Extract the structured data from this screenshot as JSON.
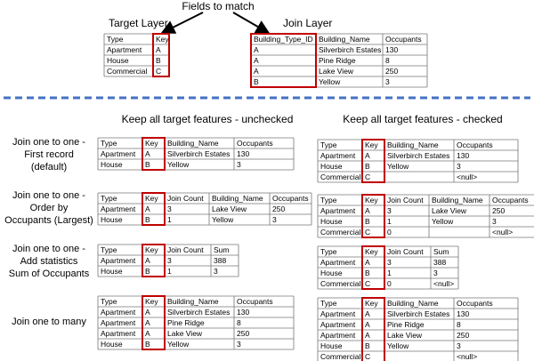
{
  "header": {
    "label": "Fields to match"
  },
  "target_layer": {
    "title": "Target Layer",
    "headers": [
      "Type",
      "Key"
    ],
    "rows": [
      [
        "Apartment",
        "A"
      ],
      [
        "House",
        "B"
      ],
      [
        "Commercial",
        "C"
      ]
    ]
  },
  "join_layer": {
    "title": "Join Layer",
    "headers": [
      "Building_Type_ID",
      "Building_Name",
      "Occupants"
    ],
    "rows": [
      [
        "A",
        "Silverbirch Estates",
        130
      ],
      [
        "A",
        "Pine Ridge",
        8
      ],
      [
        "A",
        "Lake View",
        250
      ],
      [
        "B",
        "Yellow",
        3
      ]
    ]
  },
  "columns": [
    "Keep all target features - unchecked",
    "Keep all target features - checked"
  ],
  "examples": [
    {
      "label": [
        "Join one to one -",
        "First record",
        "(default)"
      ],
      "unchecked": {
        "headers": [
          "Type",
          "Key",
          "Building_Name",
          "Occupants"
        ],
        "rows": [
          [
            "Apartment",
            "A",
            "Silverbirch Estates",
            130
          ],
          [
            "House",
            "B",
            "Yellow",
            3
          ]
        ]
      },
      "checked": {
        "headers": [
          "Type",
          "Key",
          "Building_Name",
          "Occupants"
        ],
        "rows": [
          [
            "Apartment",
            "A",
            "Silverbirch Estates",
            130
          ],
          [
            "House",
            "B",
            "Yellow",
            3
          ],
          [
            "Commercial",
            "C",
            "",
            "<null>"
          ]
        ]
      }
    },
    {
      "label": [
        "Join one to one -",
        "Order by",
        "Occupants (Largest)"
      ],
      "unchecked": {
        "headers": [
          "Type",
          "Key",
          "Join Count",
          "Building_Name",
          "Occupants"
        ],
        "rows": [
          [
            "Apartment",
            "A",
            3,
            "Lake View",
            250
          ],
          [
            "House",
            "B",
            1,
            "Yellow",
            3
          ]
        ]
      },
      "checked": {
        "headers": [
          "Type",
          "Key",
          "Join Count",
          "Building_Name",
          "Occupants"
        ],
        "rows": [
          [
            "Apartment",
            "A",
            3,
            "Lake View",
            250
          ],
          [
            "House",
            "B",
            1,
            "Yellow",
            3
          ],
          [
            "Commercial",
            "C",
            0,
            "",
            "<null>"
          ]
        ]
      }
    },
    {
      "label": [
        "Join one to one -",
        "Add statistics",
        "Sum of Occupants"
      ],
      "unchecked": {
        "headers": [
          "Type",
          "Key",
          "Join Count",
          "Sum"
        ],
        "rows": [
          [
            "Apartment",
            "A",
            3,
            388
          ],
          [
            "House",
            "B",
            1,
            3
          ]
        ]
      },
      "checked": {
        "headers": [
          "Type",
          "Key",
          "Join Count",
          "Sum"
        ],
        "rows": [
          [
            "Apartment",
            "A",
            3,
            388
          ],
          [
            "House",
            "B",
            1,
            3
          ],
          [
            "Commercial",
            "C",
            0,
            "<null>"
          ]
        ]
      }
    },
    {
      "label": [
        "Join one to many"
      ],
      "unchecked": {
        "headers": [
          "Type",
          "Key",
          "Building_Name",
          "Occupants"
        ],
        "rows": [
          [
            "Apartment",
            "A",
            "Silverbirch Estates",
            130
          ],
          [
            "Apartment",
            "A",
            "Pine Ridge",
            8
          ],
          [
            "Apartment",
            "A",
            "Lake View",
            250
          ],
          [
            "House",
            "B",
            "Yellow",
            3
          ]
        ]
      },
      "checked": {
        "headers": [
          "Type",
          "Key",
          "Building_Name",
          "Occupants"
        ],
        "rows": [
          [
            "Apartment",
            "A",
            "Silverbirch Estates",
            130
          ],
          [
            "Apartment",
            "A",
            "Pine Ridge",
            8
          ],
          [
            "Apartment",
            "A",
            "Lake View",
            250
          ],
          [
            "House",
            "B",
            "Yellow",
            3
          ],
          [
            "Commercial",
            "C",
            "",
            "<null>"
          ]
        ]
      }
    }
  ]
}
